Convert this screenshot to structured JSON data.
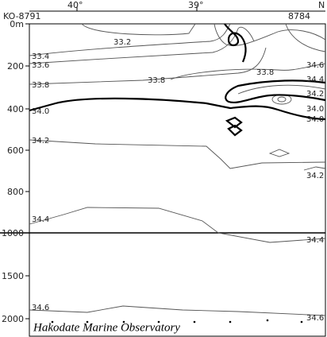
{
  "header": {
    "top_ticks": [
      "40°",
      "39°",
      "N"
    ],
    "stations": [
      "KO-8791",
      "8784"
    ]
  },
  "depth_ticks": [
    "0m",
    "200",
    "400",
    "600",
    "800",
    "1000",
    "1500",
    "2000"
  ],
  "contour_labels": [
    "33.2",
    "33.4",
    "33.6",
    "33.8",
    "33.8",
    "33.8",
    "34.0",
    "34.2",
    "34.4",
    "34.6",
    "34.6",
    "34.4",
    "34.2",
    "34.0",
    "34.0",
    "34.2",
    "34.4",
    "34.6"
  ],
  "credit": "Hakodate Marine Observatory"
}
